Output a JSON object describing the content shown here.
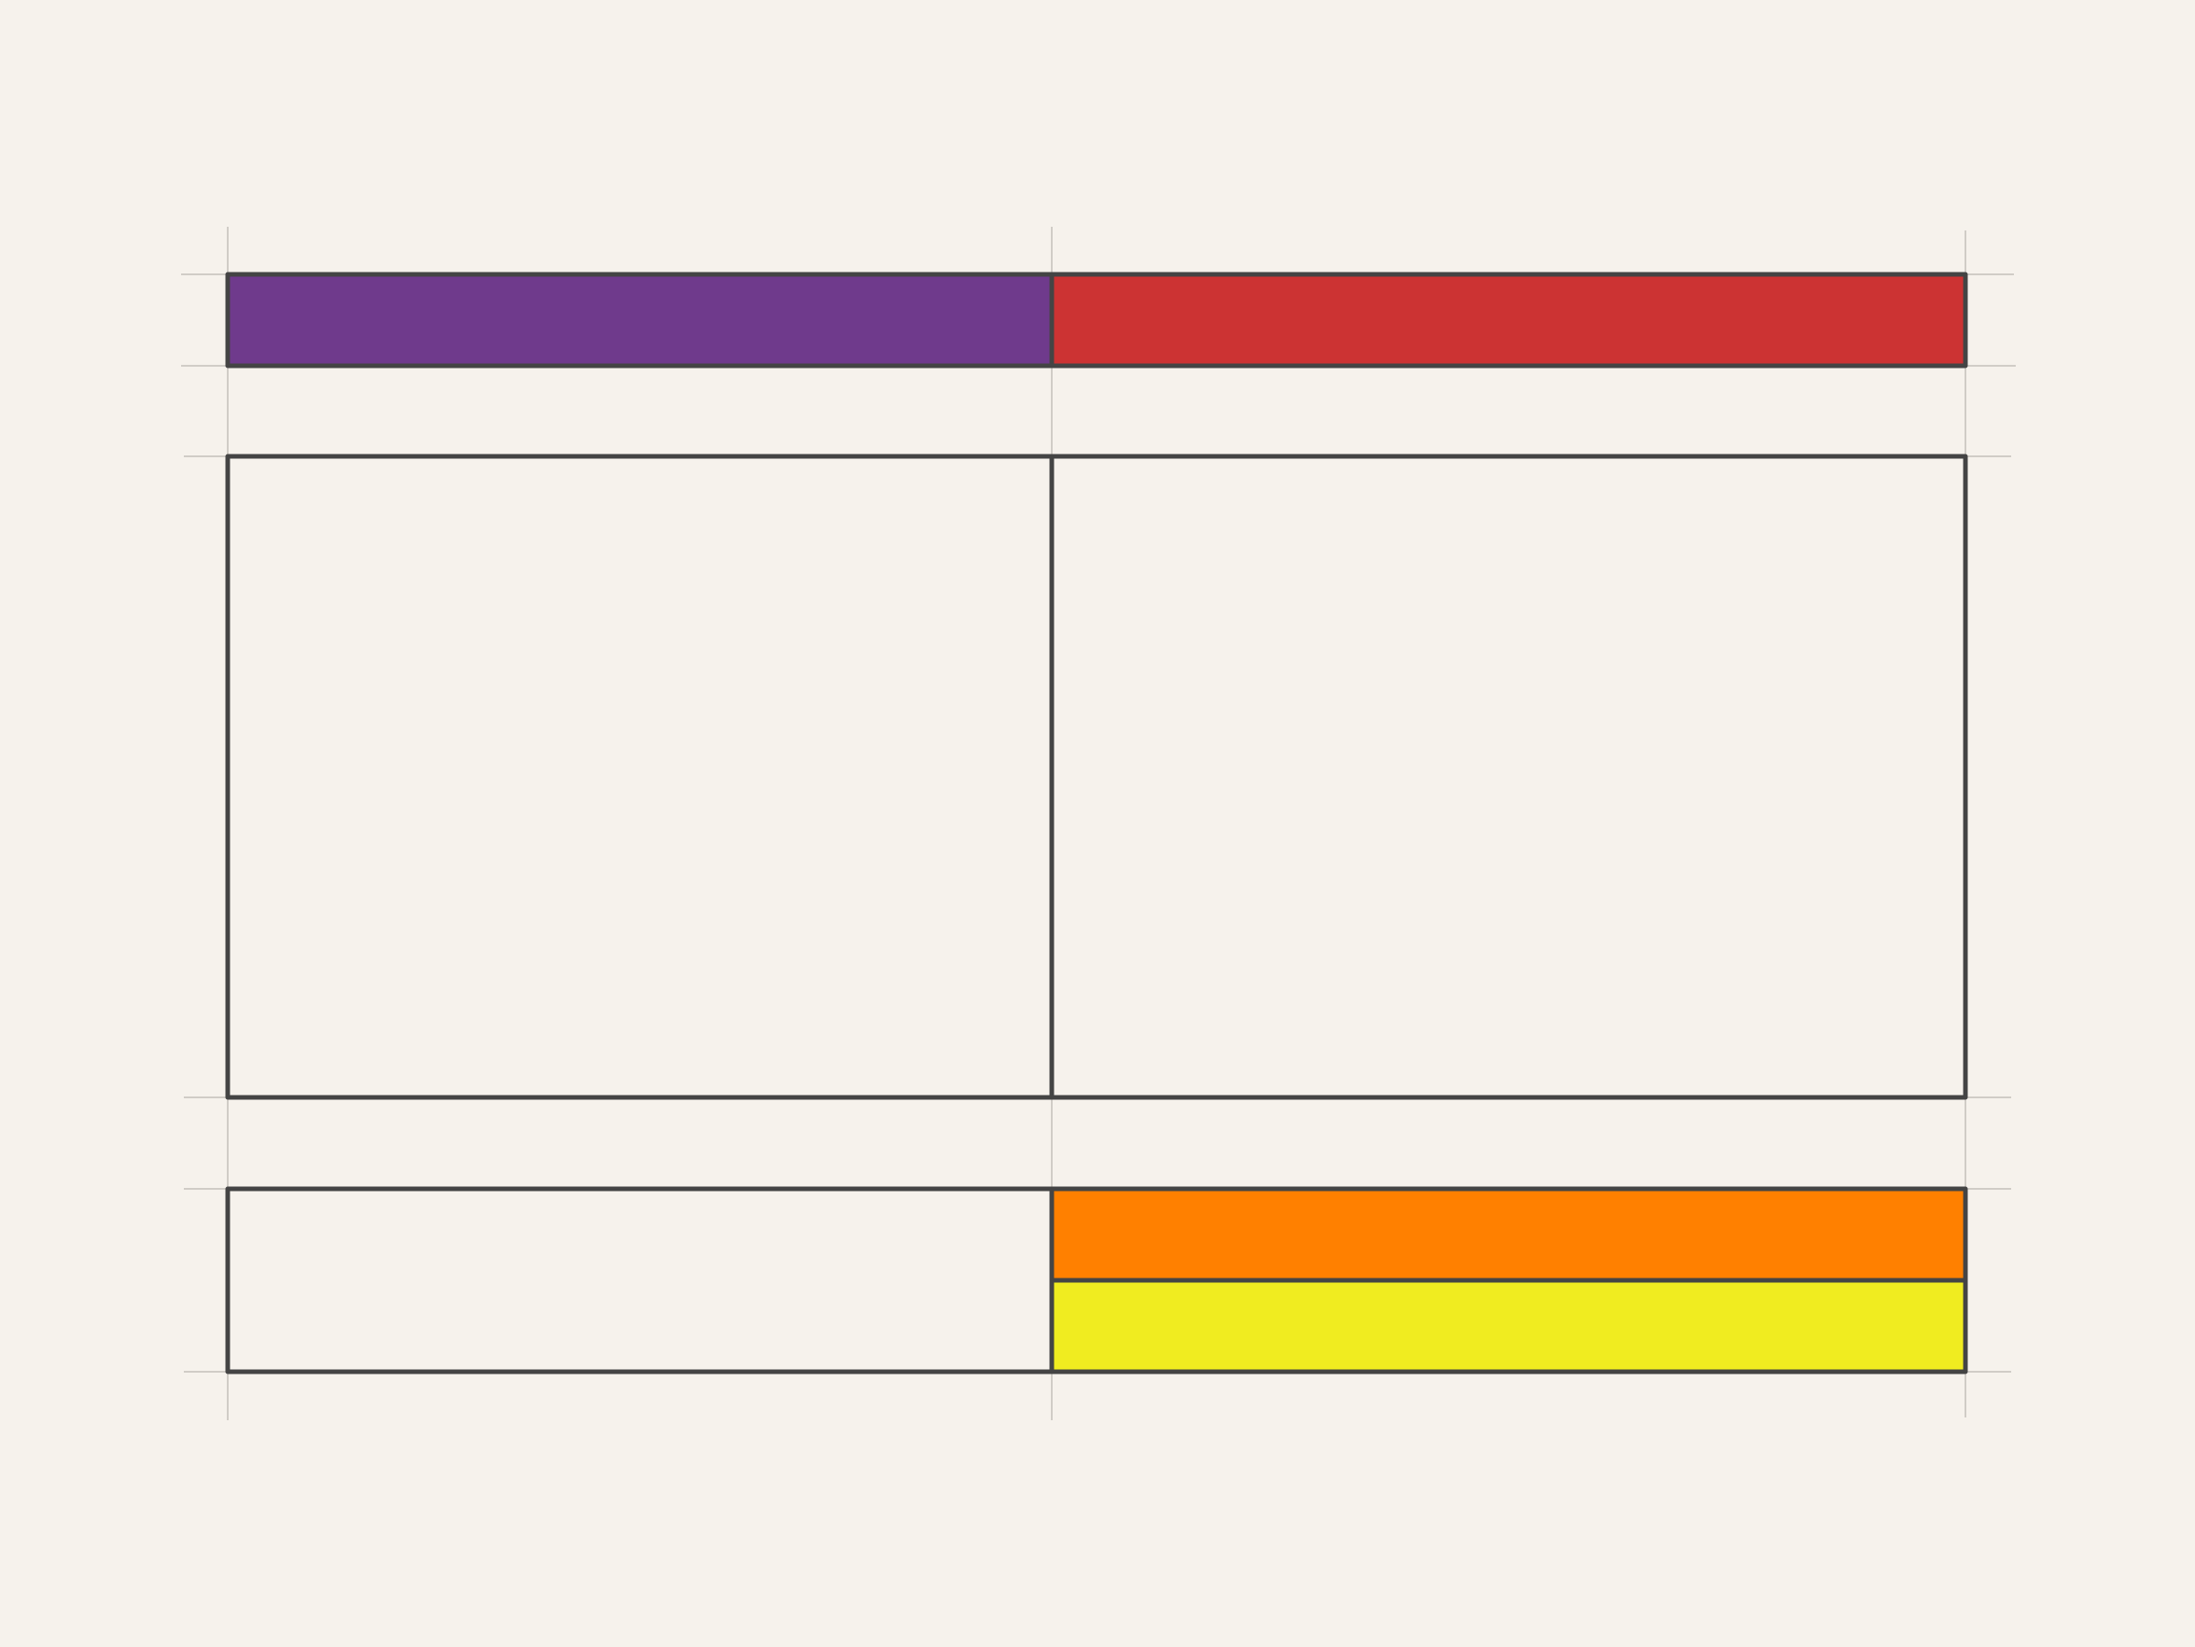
{
  "colors": {
    "background": "#f6f2ec",
    "stroke": "#444444",
    "guide": "#c4c0ba",
    "purple": "#6f3a8c",
    "red": "#cc3333",
    "orange": "#ff8000",
    "yellow": "#f0ec20",
    "empty": "#f6f2ec"
  },
  "cells": [
    {
      "name": "top-left-cell",
      "fill": "purple"
    },
    {
      "name": "top-right-cell",
      "fill": "red"
    },
    {
      "name": "middle-left-cell",
      "fill": "empty"
    },
    {
      "name": "middle-right-cell",
      "fill": "empty"
    },
    {
      "name": "bottom-left-cell",
      "fill": "empty"
    },
    {
      "name": "bottom-right-upper-cell",
      "fill": "orange"
    },
    {
      "name": "bottom-right-lower-cell",
      "fill": "yellow"
    }
  ]
}
